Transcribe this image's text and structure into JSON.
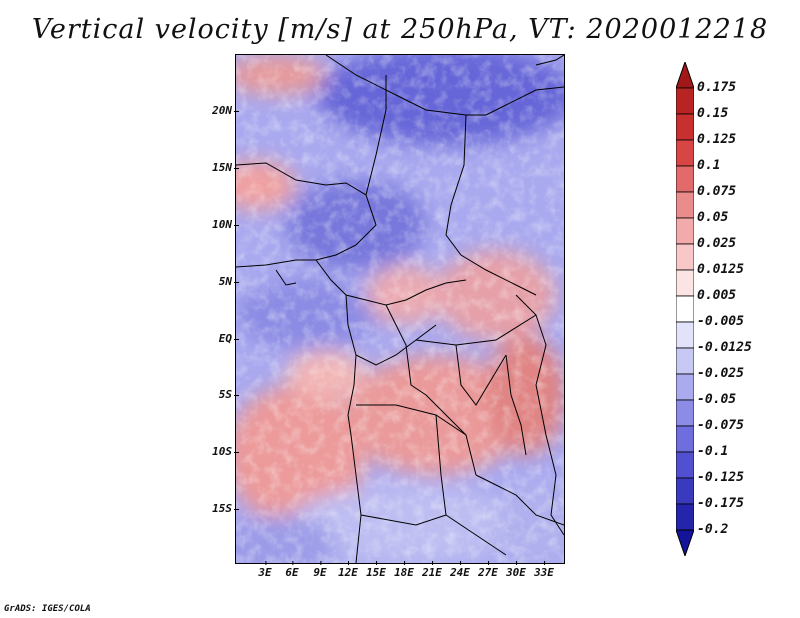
{
  "title": "Vertical velocity [m/s] at 250hPa, VT: 2020012218",
  "footer": "GrADS: IGES/COLA",
  "latitude_labels": [
    "20N",
    "15N",
    "10N",
    "5N",
    "EQ",
    "5S",
    "10S",
    "15S"
  ],
  "longitude_labels": [
    "3E",
    "6E",
    "9E",
    "12E",
    "15E",
    "18E",
    "21E",
    "24E",
    "27E",
    "30E",
    "33E"
  ],
  "colorbar": {
    "labels": [
      "0.175",
      "0.15",
      "0.125",
      "0.1",
      "0.075",
      "0.05",
      "0.025",
      "0.0125",
      "0.005",
      "-0.005",
      "-0.0125",
      "-0.025",
      "-0.05",
      "-0.075",
      "-0.1",
      "-0.125",
      "-0.175",
      "-0.2"
    ],
    "colors": [
      "#a01818",
      "#b82323",
      "#c83030",
      "#d84545",
      "#e26a6a",
      "#eb8c8c",
      "#f2aaaa",
      "#f8c8c8",
      "#fde4e4",
      "#ffffff",
      "#e2e2fa",
      "#c8c8f4",
      "#aaaaee",
      "#8c8ce6",
      "#6e6ede",
      "#5050d0",
      "#3a3abf",
      "#2525ac",
      "#14149a"
    ]
  }
}
